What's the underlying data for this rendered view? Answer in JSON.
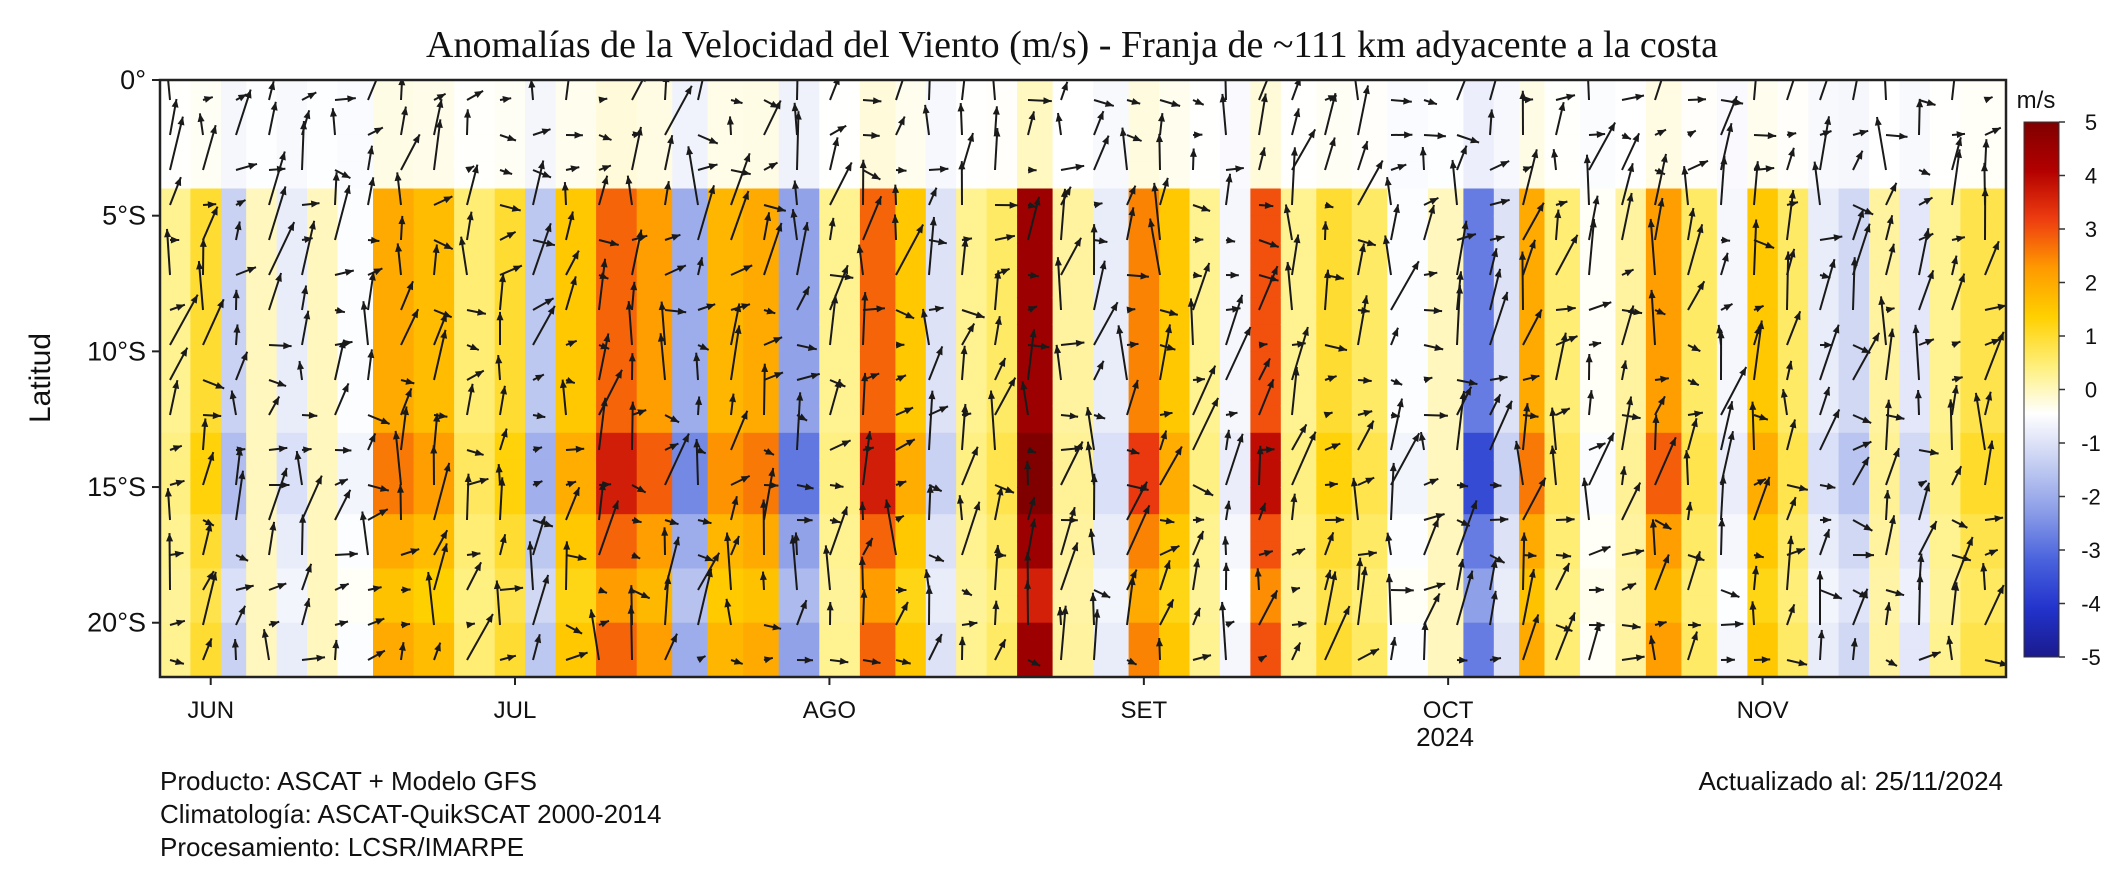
{
  "chart_data": {
    "type": "heatmap",
    "title": "Anomalías de la Velocidad del Viento (m/s) - Franja de ~111 km adyacente a la costa",
    "xlabel": "",
    "ylabel": "Latitud",
    "year_label": "2024",
    "x_ticks": [
      "JUN",
      "JUL",
      "AGO",
      "SET",
      "OCT",
      "NOV"
    ],
    "x_tick_dates": [
      "2024-06-01",
      "2024-07-01",
      "2024-08-01",
      "2024-09-01",
      "2024-10-01",
      "2024-11-01"
    ],
    "xlim": [
      "2024-05-27",
      "2024-11-25"
    ],
    "y_ticks": [
      "0°",
      "5°S",
      "10°S",
      "15°S",
      "20°S"
    ],
    "y_tick_values": [
      0,
      -5,
      -10,
      -15,
      -20
    ],
    "ylim": [
      -22,
      0
    ],
    "colorbar": {
      "title": "m/s",
      "ticks": [
        "5",
        "4",
        "3",
        "2",
        "1",
        "0",
        "-1",
        "-2",
        "-3",
        "-4",
        "-5"
      ],
      "range": [
        -5,
        5
      ],
      "colors": [
        "#1a1a8c",
        "#2233cc",
        "#4a63dd",
        "#8c9ee8",
        "#c6cff2",
        "#ffffff",
        "#ffef7a",
        "#ffd000",
        "#ff9a00",
        "#ee3d10",
        "#b30000",
        "#800000"
      ]
    },
    "bands": [
      {
        "date": "2024-05-28",
        "anomaly": 0.3
      },
      {
        "date": "2024-06-01",
        "anomaly": 1.0
      },
      {
        "date": "2024-06-03",
        "anomaly": -1.3
      },
      {
        "date": "2024-06-06",
        "anomaly": 0.0
      },
      {
        "date": "2024-06-09",
        "anomaly": -0.8
      },
      {
        "date": "2024-06-12",
        "anomaly": 0.0
      },
      {
        "date": "2024-06-15",
        "anomaly": -0.5
      },
      {
        "date": "2024-06-19",
        "anomaly": 2.0
      },
      {
        "date": "2024-06-23",
        "anomaly": 1.7
      },
      {
        "date": "2024-06-27",
        "anomaly": 0.5
      },
      {
        "date": "2024-07-01",
        "anomaly": 1.0
      },
      {
        "date": "2024-07-03",
        "anomaly": -1.5
      },
      {
        "date": "2024-07-07",
        "anomaly": 1.5
      },
      {
        "date": "2024-07-11",
        "anomaly": 2.8
      },
      {
        "date": "2024-07-15",
        "anomaly": 2.2
      },
      {
        "date": "2024-07-18",
        "anomaly": -2.0
      },
      {
        "date": "2024-07-22",
        "anomaly": 1.8
      },
      {
        "date": "2024-07-25",
        "anomaly": 2.0
      },
      {
        "date": "2024-07-29",
        "anomaly": -2.2
      },
      {
        "date": "2024-08-02",
        "anomaly": 0.3
      },
      {
        "date": "2024-08-06",
        "anomaly": 2.8
      },
      {
        "date": "2024-08-09",
        "anomaly": 1.5
      },
      {
        "date": "2024-08-12",
        "anomaly": -1.0
      },
      {
        "date": "2024-08-15",
        "anomaly": 0.3
      },
      {
        "date": "2024-08-18",
        "anomaly": 0.6
      },
      {
        "date": "2024-08-21",
        "anomaly": 4.5
      },
      {
        "date": "2024-08-25",
        "anomaly": 0.2
      },
      {
        "date": "2024-08-29",
        "anomaly": -0.8
      },
      {
        "date": "2024-09-01",
        "anomaly": 2.5
      },
      {
        "date": "2024-09-04",
        "anomaly": 1.5
      },
      {
        "date": "2024-09-07",
        "anomaly": 0.3
      },
      {
        "date": "2024-09-10",
        "anomaly": -0.6
      },
      {
        "date": "2024-09-13",
        "anomaly": 3.0
      },
      {
        "date": "2024-09-16",
        "anomaly": 0.3
      },
      {
        "date": "2024-09-20",
        "anomaly": 1.0
      },
      {
        "date": "2024-09-23",
        "anomaly": 0.6
      },
      {
        "date": "2024-09-27",
        "anomaly": -0.5
      },
      {
        "date": "2024-10-01",
        "anomaly": 0.0
      },
      {
        "date": "2024-10-04",
        "anomaly": -2.8
      },
      {
        "date": "2024-10-07",
        "anomaly": -1.0
      },
      {
        "date": "2024-10-09",
        "anomaly": 2.0
      },
      {
        "date": "2024-10-12",
        "anomaly": 0.5
      },
      {
        "date": "2024-10-16",
        "anomaly": -0.4
      },
      {
        "date": "2024-10-19",
        "anomaly": 0.2
      },
      {
        "date": "2024-10-22",
        "anomaly": 2.2
      },
      {
        "date": "2024-10-26",
        "anomaly": 0.6
      },
      {
        "date": "2024-10-29",
        "anomaly": -0.6
      },
      {
        "date": "2024-11-01",
        "anomaly": 1.5
      },
      {
        "date": "2024-11-04",
        "anomaly": 0.6
      },
      {
        "date": "2024-11-07",
        "anomaly": -0.8
      },
      {
        "date": "2024-11-10",
        "anomaly": -1.2
      },
      {
        "date": "2024-11-13",
        "anomaly": 0.2
      },
      {
        "date": "2024-11-16",
        "anomaly": -0.9
      },
      {
        "date": "2024-11-19",
        "anomaly": 0.3
      },
      {
        "date": "2024-11-22",
        "anomaly": 0.8
      }
    ],
    "northern_strip": {
      "lat_range": [
        -4,
        0
      ],
      "anomaly": -0.8
    }
  },
  "footer": {
    "producto": "Producto: ASCAT + Modelo GFS",
    "climatologia": "Climatología: ASCAT-QuikSCAT 2000-2014",
    "procesamiento": "Procesamiento: LCSR/IMARPE",
    "actualizado": "Actualizado al: 25/11/2024"
  }
}
